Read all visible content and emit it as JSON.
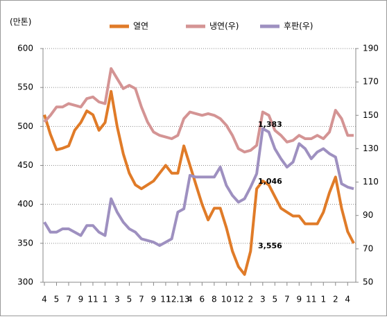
{
  "chart_data": {
    "type": "line",
    "y_label": "(만톤)",
    "categories": [
      "4",
      null,
      "5",
      null,
      "7",
      null,
      "9",
      null,
      "11",
      null,
      "1",
      null,
      "3",
      null,
      "5",
      null,
      "7",
      null,
      "9",
      null,
      "11",
      null,
      "12.13",
      null,
      "4",
      null,
      "6",
      null,
      "8",
      null,
      "10",
      null,
      "12",
      null,
      "2",
      null,
      "3",
      null,
      "5",
      null,
      "7",
      null,
      "9",
      null,
      "11",
      null,
      "1",
      null,
      "2",
      null,
      "4",
      null
    ],
    "series": [
      {
        "name": "열연",
        "color": "#e07b28",
        "axis": "y",
        "values": [
          515,
          490,
          470,
          472,
          475,
          495,
          505,
          520,
          515,
          495,
          505,
          545,
          500,
          465,
          440,
          425,
          420,
          425,
          430,
          440,
          450,
          440,
          440,
          475,
          450,
          425,
          400,
          380,
          395,
          395,
          370,
          340,
          320,
          310,
          340,
          420,
          430,
          425,
          410,
          395,
          390,
          385,
          385,
          375,
          375,
          375,
          390,
          415,
          435,
          395,
          365,
          350
        ]
      },
      {
        "name": "냉연(우)",
        "color": "#d49494",
        "axis": "y2",
        "values": [
          146,
          150,
          155,
          155,
          157,
          156,
          155,
          160,
          161,
          158,
          157,
          178,
          172,
          166,
          168,
          166,
          155,
          146,
          140,
          138,
          137,
          136,
          138,
          148,
          152,
          151,
          150,
          151,
          150,
          148,
          144,
          138,
          130,
          128,
          129,
          132,
          152,
          150,
          141,
          138,
          134,
          135,
          138,
          136,
          136,
          138,
          136,
          140,
          153,
          148,
          138,
          138
        ]
      },
      {
        "name": "후판(우)",
        "color": "#9e90c0",
        "axis": "y2",
        "values": [
          86,
          80,
          80,
          82,
          82,
          80,
          78,
          84,
          84,
          80,
          78,
          100,
          92,
          86,
          82,
          80,
          76,
          75,
          74,
          72,
          74,
          76,
          92,
          94,
          114,
          113,
          113,
          113,
          113,
          119,
          108,
          102,
          98,
          100,
          107,
          115,
          142,
          140,
          130,
          124,
          119,
          122,
          133,
          130,
          124,
          128,
          130,
          127,
          125,
          109,
          107,
          106
        ]
      }
    ],
    "ylim": [
      300,
      600
    ],
    "yticks": [
      300,
      350,
      400,
      450,
      500,
      550,
      600
    ],
    "y2lim": [
      50,
      190
    ],
    "y2ticks": [
      50,
      70,
      90,
      110,
      130,
      150,
      170,
      190
    ],
    "grid": true,
    "annotations": [
      "1,383",
      "1,046",
      "3,556"
    ]
  }
}
